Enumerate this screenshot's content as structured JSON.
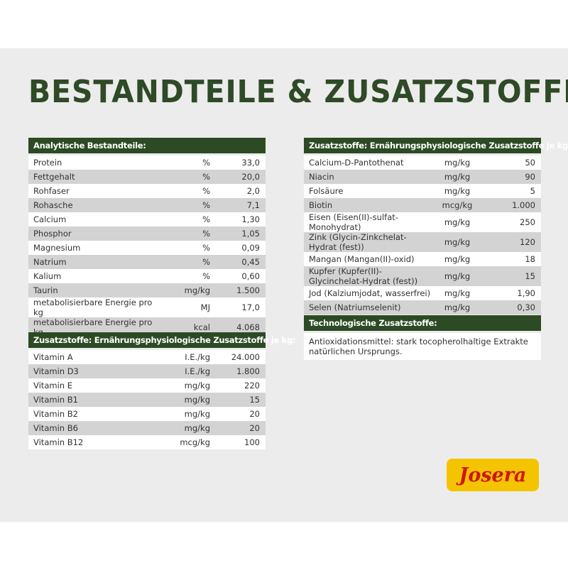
{
  "title": "BESTANDTEILE & ZUSATZSTOFFE",
  "analytical": {
    "header": "Analytische Bestandteile:",
    "rows": [
      {
        "name": "Protein",
        "unit": "%",
        "value": "33,0"
      },
      {
        "name": "Fettgehalt",
        "unit": "%",
        "value": "20,0"
      },
      {
        "name": "Rohfaser",
        "unit": "%",
        "value": "2,0"
      },
      {
        "name": "Rohasche",
        "unit": "%",
        "value": "7,1"
      },
      {
        "name": "Calcium",
        "unit": "%",
        "value": "1,30"
      },
      {
        "name": "Phosphor",
        "unit": "%",
        "value": "1,05"
      },
      {
        "name": "Magnesium",
        "unit": "%",
        "value": "0,09"
      },
      {
        "name": "Natrium",
        "unit": "%",
        "value": "0,45"
      },
      {
        "name": "Kalium",
        "unit": "%",
        "value": "0,60"
      },
      {
        "name": "Taurin",
        "unit": "mg/kg",
        "value": "1.500"
      },
      {
        "name": "metabolisierbare Energie pro kg",
        "unit": "MJ",
        "value": "17,0"
      },
      {
        "name": "metabolisierbare Energie pro kg",
        "unit": "kcal",
        "value": "4.068"
      }
    ]
  },
  "vitamins": {
    "header": "Zusatzstoffe: Ernährungsphysiologische Zusatzstoffe je kg:",
    "rows": [
      {
        "name": "Vitamin A",
        "unit": "I.E./kg",
        "value": "24.000"
      },
      {
        "name": "Vitamin D3",
        "unit": "I.E./kg",
        "value": "1.800"
      },
      {
        "name": "Vitamin E",
        "unit": "mg/kg",
        "value": "220"
      },
      {
        "name": "Vitamin B1",
        "unit": "mg/kg",
        "value": "15"
      },
      {
        "name": "Vitamin B2",
        "unit": "mg/kg",
        "value": "20"
      },
      {
        "name": "Vitamin B6",
        "unit": "mg/kg",
        "value": "20"
      },
      {
        "name": "Vitamin B12",
        "unit": "mcg/kg",
        "value": "100"
      }
    ]
  },
  "minerals": {
    "header": "Zusatzstoffe: Ernährungsphysiologische Zusatzstoffe je kg:",
    "rows": [
      {
        "name": "Calcium-D-Pantothenat",
        "unit": "mg/kg",
        "value": "50"
      },
      {
        "name": "Niacin",
        "unit": "mg/kg",
        "value": "90"
      },
      {
        "name": "Folsäure",
        "unit": "mg/kg",
        "value": "5"
      },
      {
        "name": "Biotin",
        "unit": "mcg/kg",
        "value": "1.000"
      },
      {
        "name": "Eisen (Eisen(II)-sulfat-Monohydrat)",
        "unit": "mg/kg",
        "value": "250"
      },
      {
        "name": "Zink (Glycin-Zinkchelat-Hydrat (fest))",
        "unit": "mg/kg",
        "value": "120"
      },
      {
        "name": "Mangan (Mangan(II)-oxid)",
        "unit": "mg/kg",
        "value": "18"
      },
      {
        "name": "Kupfer (Kupfer(II)-Glycinchelat-Hydrat (fest))",
        "unit": "mg/kg",
        "value": "15"
      },
      {
        "name": "Jod (Kalziumjodat, wasserfrei)",
        "unit": "mg/kg",
        "value": "1,90"
      },
      {
        "name": "Selen (Natriumselenit)",
        "unit": "mg/kg",
        "value": "0,30"
      }
    ]
  },
  "technological": {
    "header": "Technologische Zusatzstoffe:",
    "text": "Antioxidationsmittel: stark tocopherolhaltige Extrakte natürlichen Ursprungs."
  },
  "logo": "Josera"
}
